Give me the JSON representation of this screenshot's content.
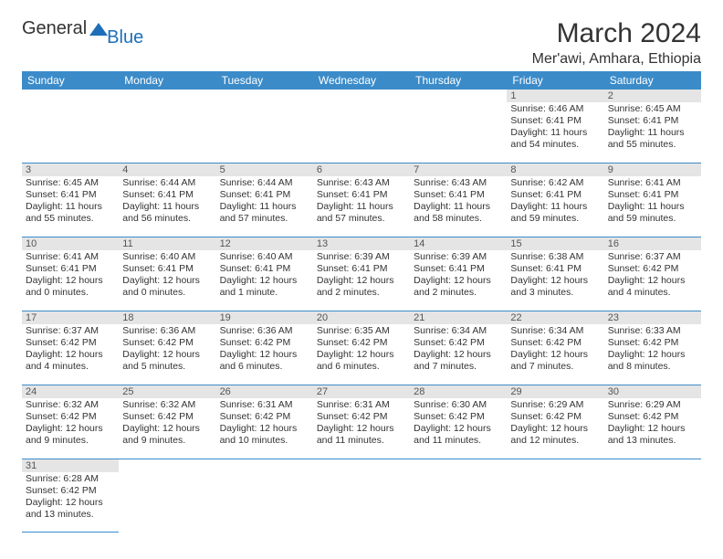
{
  "logo": {
    "part1": "General",
    "part2": "Blue"
  },
  "title": "March 2024",
  "location": "Mer'awi, Amhara, Ethiopia",
  "colors": {
    "header_bg": "#3b8bc9",
    "header_text": "#ffffff",
    "daynum_bg": "#e5e5e5",
    "text": "#333333",
    "logo_blue": "#1d6fb8",
    "week_border": "#3b8bc9"
  },
  "fonts": {
    "title_size": 30,
    "location_size": 16,
    "header_size": 12,
    "cell_size": 10.5,
    "daynum_size": 11
  },
  "day_labels": [
    "Sunday",
    "Monday",
    "Tuesday",
    "Wednesday",
    "Thursday",
    "Friday",
    "Saturday"
  ],
  "weeks": [
    [
      null,
      null,
      null,
      null,
      null,
      {
        "d": "1",
        "sr": "Sunrise: 6:46 AM",
        "ss": "Sunset: 6:41 PM",
        "dl1": "Daylight: 11 hours",
        "dl2": "and 54 minutes."
      },
      {
        "d": "2",
        "sr": "Sunrise: 6:45 AM",
        "ss": "Sunset: 6:41 PM",
        "dl1": "Daylight: 11 hours",
        "dl2": "and 55 minutes."
      }
    ],
    [
      {
        "d": "3",
        "sr": "Sunrise: 6:45 AM",
        "ss": "Sunset: 6:41 PM",
        "dl1": "Daylight: 11 hours",
        "dl2": "and 55 minutes."
      },
      {
        "d": "4",
        "sr": "Sunrise: 6:44 AM",
        "ss": "Sunset: 6:41 PM",
        "dl1": "Daylight: 11 hours",
        "dl2": "and 56 minutes."
      },
      {
        "d": "5",
        "sr": "Sunrise: 6:44 AM",
        "ss": "Sunset: 6:41 PM",
        "dl1": "Daylight: 11 hours",
        "dl2": "and 57 minutes."
      },
      {
        "d": "6",
        "sr": "Sunrise: 6:43 AM",
        "ss": "Sunset: 6:41 PM",
        "dl1": "Daylight: 11 hours",
        "dl2": "and 57 minutes."
      },
      {
        "d": "7",
        "sr": "Sunrise: 6:43 AM",
        "ss": "Sunset: 6:41 PM",
        "dl1": "Daylight: 11 hours",
        "dl2": "and 58 minutes."
      },
      {
        "d": "8",
        "sr": "Sunrise: 6:42 AM",
        "ss": "Sunset: 6:41 PM",
        "dl1": "Daylight: 11 hours",
        "dl2": "and 59 minutes."
      },
      {
        "d": "9",
        "sr": "Sunrise: 6:41 AM",
        "ss": "Sunset: 6:41 PM",
        "dl1": "Daylight: 11 hours",
        "dl2": "and 59 minutes."
      }
    ],
    [
      {
        "d": "10",
        "sr": "Sunrise: 6:41 AM",
        "ss": "Sunset: 6:41 PM",
        "dl1": "Daylight: 12 hours",
        "dl2": "and 0 minutes."
      },
      {
        "d": "11",
        "sr": "Sunrise: 6:40 AM",
        "ss": "Sunset: 6:41 PM",
        "dl1": "Daylight: 12 hours",
        "dl2": "and 0 minutes."
      },
      {
        "d": "12",
        "sr": "Sunrise: 6:40 AM",
        "ss": "Sunset: 6:41 PM",
        "dl1": "Daylight: 12 hours",
        "dl2": "and 1 minute."
      },
      {
        "d": "13",
        "sr": "Sunrise: 6:39 AM",
        "ss": "Sunset: 6:41 PM",
        "dl1": "Daylight: 12 hours",
        "dl2": "and 2 minutes."
      },
      {
        "d": "14",
        "sr": "Sunrise: 6:39 AM",
        "ss": "Sunset: 6:41 PM",
        "dl1": "Daylight: 12 hours",
        "dl2": "and 2 minutes."
      },
      {
        "d": "15",
        "sr": "Sunrise: 6:38 AM",
        "ss": "Sunset: 6:41 PM",
        "dl1": "Daylight: 12 hours",
        "dl2": "and 3 minutes."
      },
      {
        "d": "16",
        "sr": "Sunrise: 6:37 AM",
        "ss": "Sunset: 6:42 PM",
        "dl1": "Daylight: 12 hours",
        "dl2": "and 4 minutes."
      }
    ],
    [
      {
        "d": "17",
        "sr": "Sunrise: 6:37 AM",
        "ss": "Sunset: 6:42 PM",
        "dl1": "Daylight: 12 hours",
        "dl2": "and 4 minutes."
      },
      {
        "d": "18",
        "sr": "Sunrise: 6:36 AM",
        "ss": "Sunset: 6:42 PM",
        "dl1": "Daylight: 12 hours",
        "dl2": "and 5 minutes."
      },
      {
        "d": "19",
        "sr": "Sunrise: 6:36 AM",
        "ss": "Sunset: 6:42 PM",
        "dl1": "Daylight: 12 hours",
        "dl2": "and 6 minutes."
      },
      {
        "d": "20",
        "sr": "Sunrise: 6:35 AM",
        "ss": "Sunset: 6:42 PM",
        "dl1": "Daylight: 12 hours",
        "dl2": "and 6 minutes."
      },
      {
        "d": "21",
        "sr": "Sunrise: 6:34 AM",
        "ss": "Sunset: 6:42 PM",
        "dl1": "Daylight: 12 hours",
        "dl2": "and 7 minutes."
      },
      {
        "d": "22",
        "sr": "Sunrise: 6:34 AM",
        "ss": "Sunset: 6:42 PM",
        "dl1": "Daylight: 12 hours",
        "dl2": "and 7 minutes."
      },
      {
        "d": "23",
        "sr": "Sunrise: 6:33 AM",
        "ss": "Sunset: 6:42 PM",
        "dl1": "Daylight: 12 hours",
        "dl2": "and 8 minutes."
      }
    ],
    [
      {
        "d": "24",
        "sr": "Sunrise: 6:32 AM",
        "ss": "Sunset: 6:42 PM",
        "dl1": "Daylight: 12 hours",
        "dl2": "and 9 minutes."
      },
      {
        "d": "25",
        "sr": "Sunrise: 6:32 AM",
        "ss": "Sunset: 6:42 PM",
        "dl1": "Daylight: 12 hours",
        "dl2": "and 9 minutes."
      },
      {
        "d": "26",
        "sr": "Sunrise: 6:31 AM",
        "ss": "Sunset: 6:42 PM",
        "dl1": "Daylight: 12 hours",
        "dl2": "and 10 minutes."
      },
      {
        "d": "27",
        "sr": "Sunrise: 6:31 AM",
        "ss": "Sunset: 6:42 PM",
        "dl1": "Daylight: 12 hours",
        "dl2": "and 11 minutes."
      },
      {
        "d": "28",
        "sr": "Sunrise: 6:30 AM",
        "ss": "Sunset: 6:42 PM",
        "dl1": "Daylight: 12 hours",
        "dl2": "and 11 minutes."
      },
      {
        "d": "29",
        "sr": "Sunrise: 6:29 AM",
        "ss": "Sunset: 6:42 PM",
        "dl1": "Daylight: 12 hours",
        "dl2": "and 12 minutes."
      },
      {
        "d": "30",
        "sr": "Sunrise: 6:29 AM",
        "ss": "Sunset: 6:42 PM",
        "dl1": "Daylight: 12 hours",
        "dl2": "and 13 minutes."
      }
    ],
    [
      {
        "d": "31",
        "sr": "Sunrise: 6:28 AM",
        "ss": "Sunset: 6:42 PM",
        "dl1": "Daylight: 12 hours",
        "dl2": "and 13 minutes."
      },
      null,
      null,
      null,
      null,
      null,
      null
    ]
  ]
}
